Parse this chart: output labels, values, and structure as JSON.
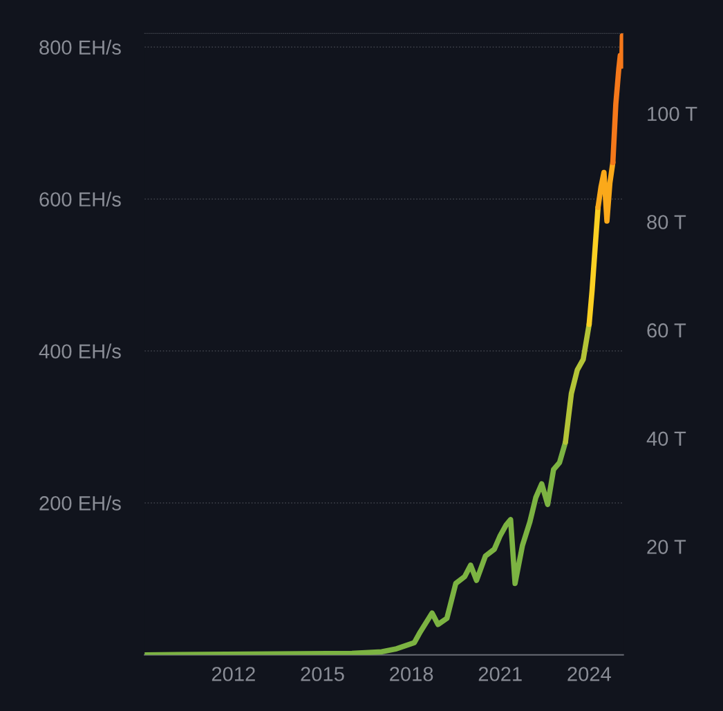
{
  "chart_data": {
    "type": "line",
    "series": [
      {
        "color": "#7cb342",
        "x": [
          2009.0,
          2016.0,
          2017.0,
          2017.5,
          2018.1,
          2018.3,
          2018.7,
          2018.9,
          2019.2,
          2019.5,
          2019.8,
          2020.0,
          2020.2,
          2020.5,
          2020.8,
          2021.0,
          2021.2,
          2021.35,
          2021.5,
          2021.75,
          2022.0,
          2022.2,
          2022.4,
          2022.6,
          2022.8,
          2023.0,
          2023.2
        ],
        "values": [
          0,
          2,
          4,
          8,
          16,
          30,
          55,
          40,
          48,
          94,
          103,
          118,
          98,
          130,
          139,
          157,
          171,
          178,
          94,
          144,
          175,
          207,
          225,
          198,
          244,
          253,
          280
        ]
      },
      {
        "color": "#b4c437",
        "x": [
          2023.2,
          2023.4,
          2023.6,
          2023.8,
          2024.0
        ],
        "values": [
          280,
          344,
          375,
          389,
          435
        ]
      },
      {
        "color": "#fbd023",
        "x": [
          2024.0,
          2024.1,
          2024.2,
          2024.3
        ],
        "values": [
          435,
          480,
          535,
          589
        ]
      },
      {
        "color": "#fba91a",
        "x": [
          2024.3,
          2024.4,
          2024.5,
          2024.6,
          2024.7,
          2024.8
        ],
        "values": [
          589,
          616,
          635,
          571,
          621,
          648
        ]
      },
      {
        "color": "#f5781a",
        "x": [
          2024.8,
          2024.9,
          2025.0,
          2025.05,
          2025.1,
          2025.12
        ],
        "values": [
          648,
          725,
          771,
          789,
          775,
          815
        ]
      }
    ],
    "xlim": [
      2009.0,
      2025.15
    ],
    "xticks": [
      2012,
      2015,
      2018,
      2021,
      2024
    ],
    "ylim": [
      0,
      818
    ],
    "yticks": [
      {
        "value": 200,
        "label": "200 EH/s"
      },
      {
        "value": 400,
        "label": "400 EH/s"
      },
      {
        "value": 600,
        "label": "600 EH/s"
      },
      {
        "value": 800,
        "label": "800 EH/s"
      }
    ],
    "y2lim": [
      0,
      114.8
    ],
    "y2ticks": [
      {
        "value": 20,
        "label": "20 T"
      },
      {
        "value": 40,
        "label": "40 T"
      },
      {
        "value": 60,
        "label": "60 T"
      },
      {
        "value": 80,
        "label": "80 T"
      },
      {
        "value": 100,
        "label": "100 T"
      }
    ],
    "grid": "y",
    "line_style": "solid"
  }
}
